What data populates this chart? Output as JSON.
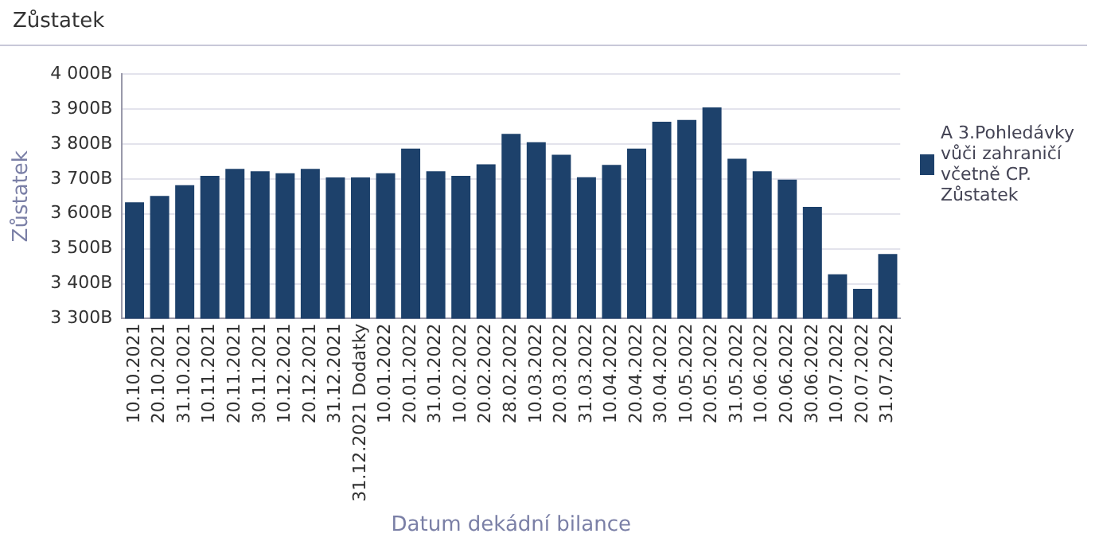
{
  "chart_data": {
    "type": "bar",
    "title": "Zůstatek",
    "xlabel": "Datum dekádní bilance",
    "ylabel": "Zůstatek",
    "categories": [
      "10.10.2021",
      "20.10.2021",
      "31.10.2021",
      "10.11.2021",
      "20.11.2021",
      "30.11.2021",
      "10.12.2021",
      "20.12.2021",
      "31.12.2021",
      "31.12.2021 Dodatky",
      "10.01.2022",
      "20.01.2022",
      "31.01.2022",
      "10.02.2022",
      "20.02.2022",
      "28.02.2022",
      "10.03.2022",
      "20.03.2022",
      "31.03.2022",
      "10.04.2022",
      "20.04.2022",
      "30.04.2022",
      "10.05.2022",
      "20.05.2022",
      "31.05.2022",
      "10.06.2022",
      "20.06.2022",
      "30.06.2022",
      "10.07.2022",
      "20.07.2022",
      "31.07.2022"
    ],
    "series": [
      {
        "name": "A 3.Pohledávky vůči zahraničí včetně CP. Zůstatek",
        "color": "#1d416b",
        "values": [
          3633,
          3651,
          3682,
          3709,
          3729,
          3722,
          3716,
          3729,
          3704,
          3704,
          3716,
          3787,
          3722,
          3709,
          3742,
          3829,
          3805,
          3769,
          3705,
          3740,
          3787,
          3864,
          3869,
          3905,
          3758,
          3722,
          3698,
          3620,
          3427,
          3385,
          3485
        ]
      }
    ],
    "ylim": [
      3300,
      4000
    ],
    "yticks": [
      {
        "value": 3300,
        "label": "3 300B"
      },
      {
        "value": 3400,
        "label": "3 400B"
      },
      {
        "value": 3500,
        "label": "3 500B"
      },
      {
        "value": 3600,
        "label": "3 600B"
      },
      {
        "value": 3700,
        "label": "3 700B"
      },
      {
        "value": 3800,
        "label": "3 800B"
      },
      {
        "value": 3900,
        "label": "3 900B"
      },
      {
        "value": 4000,
        "label": "4 000B"
      }
    ],
    "grid": "y",
    "legend": "right"
  }
}
